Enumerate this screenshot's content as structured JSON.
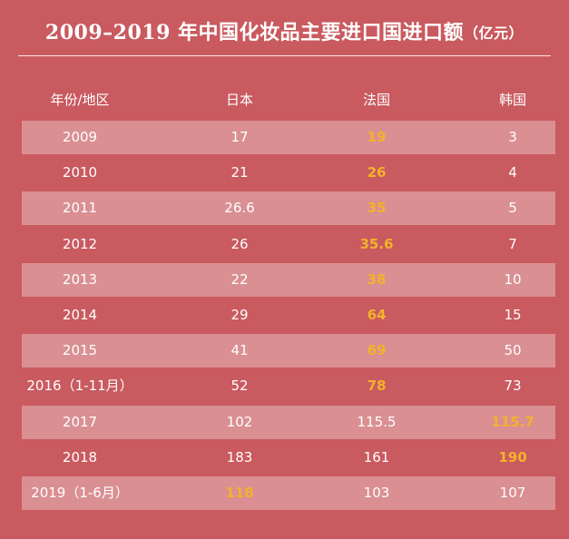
{
  "title": {
    "main": "2009–2019 年中国化妆品主要进口国进口额",
    "unit": "（亿元）"
  },
  "colors": {
    "background": "#c95a5f",
    "stripe": "#e3a1a3",
    "highlight": "#f3b22b",
    "text": "#ffffff"
  },
  "chart_data": {
    "type": "table",
    "title": "2009–2019 年中国化妆品主要进口国进口额（亿元）",
    "columns": [
      "年份/地区",
      "日本",
      "法国",
      "韩国"
    ],
    "rows": [
      {
        "cells": [
          "2009",
          "17",
          "19",
          "3"
        ],
        "highlight": [
          false,
          false,
          true,
          false
        ]
      },
      {
        "cells": [
          "2010",
          "21",
          "26",
          "4"
        ],
        "highlight": [
          false,
          false,
          true,
          false
        ]
      },
      {
        "cells": [
          "2011",
          "26.6",
          "35",
          "5"
        ],
        "highlight": [
          false,
          false,
          true,
          false
        ]
      },
      {
        "cells": [
          "2012",
          "26",
          "35.6",
          "7"
        ],
        "highlight": [
          false,
          false,
          true,
          false
        ]
      },
      {
        "cells": [
          "2013",
          "22",
          "38",
          "10"
        ],
        "highlight": [
          false,
          false,
          true,
          false
        ]
      },
      {
        "cells": [
          "2014",
          "29",
          "64",
          "15"
        ],
        "highlight": [
          false,
          false,
          true,
          false
        ]
      },
      {
        "cells": [
          "2015",
          "41",
          "69",
          "50"
        ],
        "highlight": [
          false,
          false,
          true,
          false
        ]
      },
      {
        "cells": [
          "2016（1-11月）",
          "52",
          "78",
          "73"
        ],
        "highlight": [
          false,
          false,
          true,
          false
        ]
      },
      {
        "cells": [
          "2017",
          "102",
          "115.5",
          "115.7"
        ],
        "highlight": [
          false,
          false,
          false,
          true
        ]
      },
      {
        "cells": [
          "2018",
          "183",
          "161",
          "190"
        ],
        "highlight": [
          false,
          false,
          false,
          true
        ]
      },
      {
        "cells": [
          "2019（1-6月）",
          "118",
          "103",
          "107"
        ],
        "highlight": [
          false,
          true,
          false,
          false
        ]
      }
    ]
  }
}
